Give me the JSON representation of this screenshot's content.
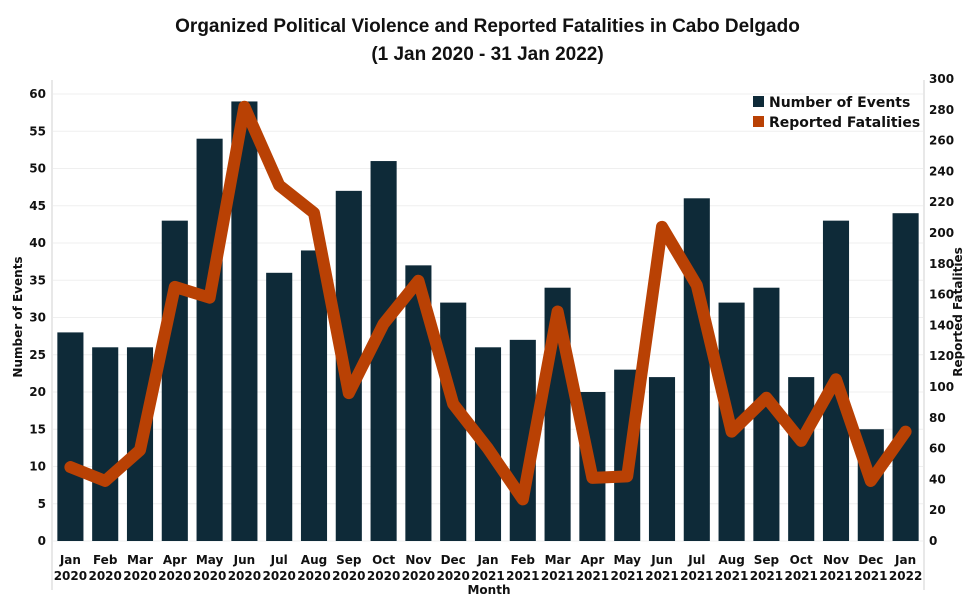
{
  "chart_data": {
    "type": "bar+line",
    "title": "Organized Political Violence and Reported Fatalities in Cabo Delgado",
    "subtitle": "(1 Jan 2020 - 31 Jan 2022)",
    "xlabel": "Month",
    "ylabel": "Number of Events",
    "y2label": "Reported Fatalities",
    "ylim": [
      0,
      60
    ],
    "y2lim": [
      0,
      300
    ],
    "yticks": [
      0,
      5,
      10,
      15,
      20,
      25,
      30,
      35,
      40,
      45,
      50,
      55,
      60
    ],
    "y2ticks": [
      0,
      20,
      40,
      60,
      80,
      100,
      120,
      140,
      160,
      180,
      200,
      220,
      240,
      260,
      280,
      300
    ],
    "grid": true,
    "legend_position": "top-right",
    "categories": [
      [
        "Jan",
        "2020"
      ],
      [
        "Feb",
        "2020"
      ],
      [
        "Mar",
        "2020"
      ],
      [
        "Apr",
        "2020"
      ],
      [
        "May",
        "2020"
      ],
      [
        "Jun",
        "2020"
      ],
      [
        "Jul",
        "2020"
      ],
      [
        "Aug",
        "2020"
      ],
      [
        "Sep",
        "2020"
      ],
      [
        "Oct",
        "2020"
      ],
      [
        "Nov",
        "2020"
      ],
      [
        "Dec",
        "2020"
      ],
      [
        "Jan",
        "2021"
      ],
      [
        "Feb",
        "2021"
      ],
      [
        "Mar",
        "2021"
      ],
      [
        "Apr",
        "2021"
      ],
      [
        "May",
        "2021"
      ],
      [
        "Jun",
        "2021"
      ],
      [
        "Jul",
        "2021"
      ],
      [
        "Aug",
        "2021"
      ],
      [
        "Sep",
        "2021"
      ],
      [
        "Oct",
        "2021"
      ],
      [
        "Nov",
        "2021"
      ],
      [
        "Dec",
        "2021"
      ],
      [
        "Jan",
        "2022"
      ]
    ],
    "series": [
      {
        "name": "Number of Events",
        "type": "bar",
        "axis": "left",
        "color": "#0e2a38",
        "values": [
          28,
          26,
          26,
          43,
          54,
          59,
          36,
          39,
          47,
          51,
          37,
          32,
          26,
          27,
          34,
          20,
          23,
          22,
          46,
          32,
          34,
          22,
          43,
          15,
          44
        ]
      },
      {
        "name": "Reported Fatalities",
        "type": "line",
        "axis": "right",
        "color": "#b94104",
        "values": [
          48,
          39,
          59,
          165,
          158,
          282,
          231,
          213,
          96,
          141,
          169,
          89,
          60,
          27,
          149,
          41,
          42,
          204,
          166,
          71,
          93,
          65,
          105,
          39,
          71
        ]
      }
    ]
  }
}
